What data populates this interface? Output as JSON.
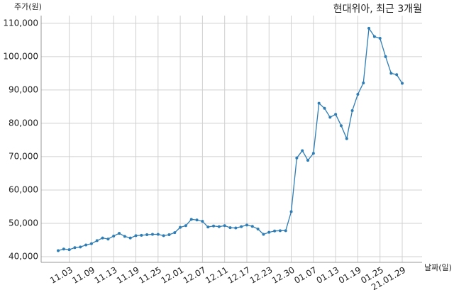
{
  "chart_data": {
    "type": "line",
    "title": "현대위아, 최근 3개월",
    "y_label": "주가(원)",
    "x_label": "날짜(일)",
    "categories": [
      null,
      null,
      "11.03",
      null,
      null,
      null,
      "11.09",
      null,
      null,
      null,
      "11.13",
      null,
      null,
      null,
      "11.19",
      null,
      null,
      null,
      "11.25",
      null,
      null,
      null,
      "12.01",
      null,
      null,
      null,
      "12.07",
      null,
      null,
      null,
      "12.11",
      null,
      null,
      null,
      "12.17",
      null,
      null,
      null,
      "12.23",
      null,
      null,
      null,
      "12.30",
      null,
      null,
      null,
      "01.07",
      null,
      null,
      null,
      "01.13",
      null,
      null,
      null,
      "01.19",
      null,
      null,
      null,
      "01.25",
      null,
      null,
      null,
      "21.01.29"
    ],
    "series": [
      {
        "name": "현대위아",
        "color": "#2e7db5",
        "values": [
          41800,
          42300,
          42100,
          42700,
          42900,
          43500,
          43900,
          44800,
          45600,
          45300,
          46200,
          47000,
          46100,
          45600,
          46300,
          46400,
          46600,
          46700,
          46700,
          46300,
          46600,
          47200,
          48800,
          49300,
          51200,
          51000,
          50600,
          48900,
          49200,
          49000,
          49300,
          48700,
          48600,
          49000,
          49500,
          49100,
          48300,
          46700,
          47300,
          47700,
          47800,
          47800,
          53500,
          69600,
          71800,
          68900,
          71000,
          86000,
          84500,
          81800,
          82700,
          79300,
          75400,
          83800,
          88700,
          92100,
          108500,
          106000,
          105500,
          100000,
          95000,
          94600,
          92000
        ]
      }
    ],
    "ylim": [
      38300,
      112300
    ],
    "yticks": [
      {
        "value": 40000,
        "label": "40,000"
      },
      {
        "value": 50000,
        "label": "50,000"
      },
      {
        "value": 60000,
        "label": "60,000"
      },
      {
        "value": 70000,
        "label": "70,000"
      },
      {
        "value": 80000,
        "label": "80,000"
      },
      {
        "value": 90000,
        "label": "90,000"
      },
      {
        "value": 100000,
        "label": "100,000"
      },
      {
        "value": 110000,
        "label": "110,000"
      }
    ],
    "grid": true
  }
}
